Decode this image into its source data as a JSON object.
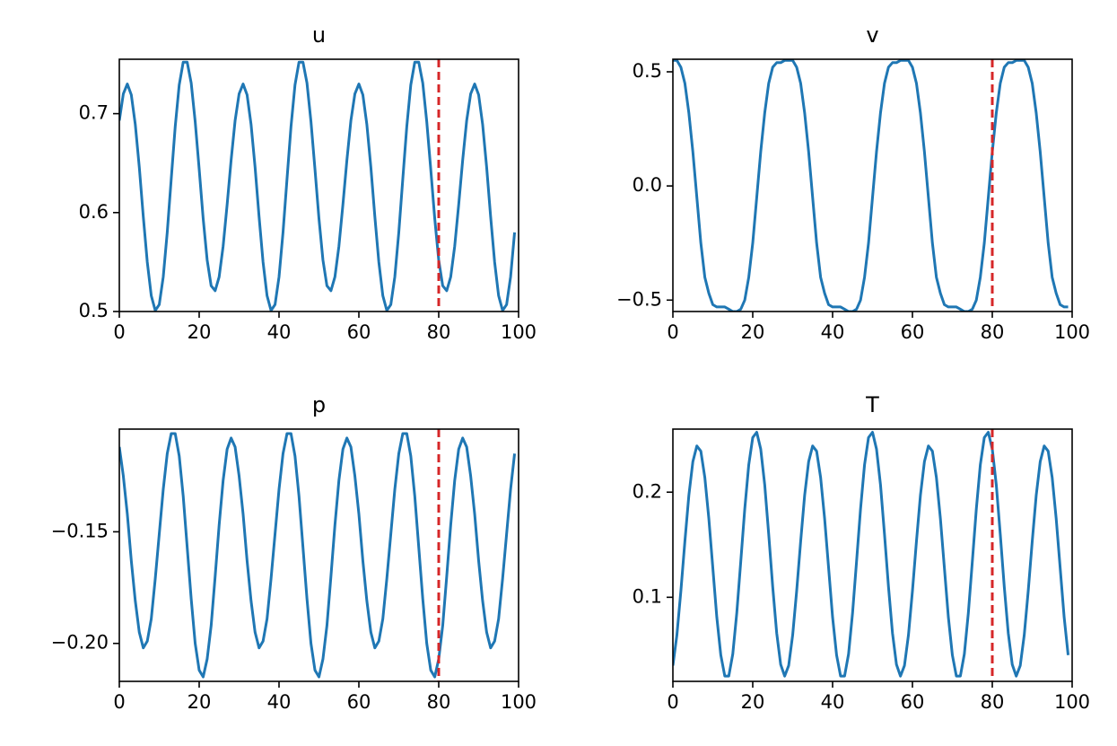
{
  "chart_data": [
    {
      "type": "line",
      "title": "u",
      "color": "#1f77b4",
      "vline": {
        "x": 80,
        "color": "#d62728"
      },
      "x": [
        0,
        1,
        2,
        3,
        4,
        5,
        6,
        7,
        8,
        9,
        10,
        11,
        12,
        13,
        14,
        15,
        16,
        17,
        18,
        19,
        20,
        21,
        22,
        23,
        24,
        25,
        26,
        27,
        28,
        29,
        30,
        31,
        32,
        33,
        34,
        35,
        36,
        37,
        38,
        39,
        40,
        41,
        42,
        43,
        44,
        45,
        46,
        47,
        48,
        49,
        50,
        51,
        52,
        53,
        54,
        55,
        56,
        57,
        58,
        59,
        60,
        61,
        62,
        63,
        64,
        65,
        66,
        67,
        68,
        69,
        70,
        71,
        72,
        73,
        74,
        75,
        76,
        77,
        78,
        79,
        80,
        81,
        82,
        83,
        84,
        85,
        86,
        87,
        88,
        89,
        90,
        91,
        92,
        93,
        94,
        95,
        96,
        97,
        98,
        99
      ],
      "values": [
        0.693,
        0.72,
        0.73,
        0.719,
        0.689,
        0.646,
        0.596,
        0.55,
        0.516,
        0.501,
        0.507,
        0.535,
        0.58,
        0.634,
        0.687,
        0.729,
        0.752,
        0.752,
        0.731,
        0.692,
        0.644,
        0.594,
        0.552,
        0.526,
        0.521,
        0.535,
        0.566,
        0.608,
        0.653,
        0.693,
        0.72,
        0.73,
        0.719,
        0.689,
        0.646,
        0.596,
        0.55,
        0.516,
        0.501,
        0.507,
        0.535,
        0.58,
        0.634,
        0.687,
        0.729,
        0.752,
        0.752,
        0.731,
        0.692,
        0.644,
        0.594,
        0.552,
        0.526,
        0.521,
        0.535,
        0.566,
        0.608,
        0.653,
        0.693,
        0.72,
        0.73,
        0.719,
        0.689,
        0.646,
        0.596,
        0.55,
        0.516,
        0.501,
        0.507,
        0.535,
        0.58,
        0.634,
        0.687,
        0.729,
        0.752,
        0.752,
        0.731,
        0.692,
        0.644,
        0.594,
        0.552,
        0.526,
        0.521,
        0.535,
        0.566,
        0.608,
        0.653,
        0.693,
        0.72,
        0.73,
        0.719,
        0.689,
        0.646,
        0.596,
        0.55,
        0.516,
        0.501,
        0.507,
        0.535,
        0.58
      ],
      "xlim": [
        0,
        100
      ],
      "xticks": [
        0,
        20,
        40,
        60,
        80,
        100
      ],
      "ylim": [
        0.5,
        0.755
      ],
      "yticks": [
        0.5,
        0.6,
        0.7
      ]
    },
    {
      "type": "line",
      "title": "v",
      "color": "#1f77b4",
      "vline": {
        "x": 80,
        "color": "#d62728"
      },
      "x": [
        0,
        1,
        2,
        3,
        4,
        5,
        6,
        7,
        8,
        9,
        10,
        11,
        12,
        13,
        14,
        15,
        16,
        17,
        18,
        19,
        20,
        21,
        22,
        23,
        24,
        25,
        26,
        27,
        28,
        29,
        30,
        31,
        32,
        33,
        34,
        35,
        36,
        37,
        38,
        39,
        40,
        41,
        42,
        43,
        44,
        45,
        46,
        47,
        48,
        49,
        50,
        51,
        52,
        53,
        54,
        55,
        56,
        57,
        58,
        59,
        60,
        61,
        62,
        63,
        64,
        65,
        66,
        67,
        68,
        69,
        70,
        71,
        72,
        73,
        74,
        75,
        76,
        77,
        78,
        79,
        80,
        81,
        82,
        83,
        84,
        85,
        86,
        87,
        88,
        89,
        90,
        91,
        92,
        93,
        94,
        95,
        96,
        97,
        98,
        99
      ],
      "values": [
        0.55,
        0.55,
        0.52,
        0.45,
        0.32,
        0.15,
        -0.05,
        -0.25,
        -0.4,
        -0.47,
        -0.52,
        -0.53,
        -0.53,
        -0.53,
        -0.54,
        -0.55,
        -0.55,
        -0.54,
        -0.5,
        -0.4,
        -0.25,
        -0.05,
        0.15,
        0.32,
        0.45,
        0.52,
        0.54,
        0.54,
        0.55,
        0.55,
        0.55,
        0.52,
        0.45,
        0.32,
        0.15,
        -0.05,
        -0.25,
        -0.4,
        -0.47,
        -0.52,
        -0.53,
        -0.53,
        -0.53,
        -0.54,
        -0.55,
        -0.55,
        -0.54,
        -0.5,
        -0.4,
        -0.25,
        -0.05,
        0.15,
        0.32,
        0.45,
        0.52,
        0.54,
        0.54,
        0.55,
        0.55,
        0.55,
        0.52,
        0.45,
        0.32,
        0.15,
        -0.05,
        -0.25,
        -0.4,
        -0.47,
        -0.52,
        -0.53,
        -0.53,
        -0.53,
        -0.54,
        -0.55,
        -0.55,
        -0.54,
        -0.5,
        -0.4,
        -0.25,
        -0.05,
        0.15,
        0.32,
        0.45,
        0.52,
        0.54,
        0.54,
        0.55,
        0.55,
        0.55,
        0.52,
        0.45,
        0.32,
        0.15,
        -0.05,
        -0.25,
        -0.4,
        -0.47,
        -0.52,
        -0.53,
        -0.53
      ],
      "xlim": [
        0,
        100
      ],
      "xticks": [
        0,
        20,
        40,
        60,
        80,
        100
      ],
      "ylim": [
        -0.55,
        0.555
      ],
      "yticks": [
        {
          "value": -0.5,
          "label": "−0.5"
        },
        {
          "value": 0,
          "label": "0.0"
        },
        0.5
      ]
    },
    {
      "type": "line",
      "title": "p",
      "color": "#1f77b4",
      "vline": {
        "x": 80,
        "color": "#d62728"
      },
      "x": [
        0,
        1,
        2,
        3,
        4,
        5,
        6,
        7,
        8,
        9,
        10,
        11,
        12,
        13,
        14,
        15,
        16,
        17,
        18,
        19,
        20,
        21,
        22,
        23,
        24,
        25,
        26,
        27,
        28,
        29,
        30,
        31,
        32,
        33,
        34,
        35,
        36,
        37,
        38,
        39,
        40,
        41,
        42,
        43,
        44,
        45,
        46,
        47,
        48,
        49,
        50,
        51,
        52,
        53,
        54,
        55,
        56,
        57,
        58,
        59,
        60,
        61,
        62,
        63,
        64,
        65,
        66,
        67,
        68,
        69,
        70,
        71,
        72,
        73,
        74,
        75,
        76,
        77,
        78,
        79,
        80,
        81,
        82,
        83,
        84,
        85,
        86,
        87,
        88,
        89,
        90,
        91,
        92,
        93,
        94,
        95,
        96,
        97,
        98,
        99
      ],
      "values": [
        -0.112,
        -0.125,
        -0.142,
        -0.163,
        -0.181,
        -0.195,
        -0.202,
        -0.199,
        -0.189,
        -0.171,
        -0.151,
        -0.131,
        -0.115,
        -0.106,
        -0.106,
        -0.116,
        -0.134,
        -0.157,
        -0.18,
        -0.2,
        -0.212,
        -0.215,
        -0.207,
        -0.192,
        -0.17,
        -0.147,
        -0.127,
        -0.113,
        -0.108,
        -0.112,
        -0.125,
        -0.142,
        -0.163,
        -0.181,
        -0.195,
        -0.202,
        -0.199,
        -0.189,
        -0.171,
        -0.151,
        -0.131,
        -0.115,
        -0.106,
        -0.106,
        -0.116,
        -0.134,
        -0.157,
        -0.18,
        -0.2,
        -0.212,
        -0.215,
        -0.207,
        -0.192,
        -0.17,
        -0.147,
        -0.127,
        -0.113,
        -0.108,
        -0.112,
        -0.125,
        -0.142,
        -0.163,
        -0.181,
        -0.195,
        -0.202,
        -0.199,
        -0.189,
        -0.171,
        -0.151,
        -0.131,
        -0.115,
        -0.106,
        -0.106,
        -0.116,
        -0.134,
        -0.157,
        -0.18,
        -0.2,
        -0.212,
        -0.215,
        -0.207,
        -0.192,
        -0.17,
        -0.147,
        -0.127,
        -0.113,
        -0.108,
        -0.112,
        -0.125,
        -0.142,
        -0.163,
        -0.181,
        -0.195,
        -0.202,
        -0.199,
        -0.189,
        -0.171,
        -0.151,
        -0.131,
        -0.115
      ],
      "xlim": [
        0,
        100
      ],
      "xticks": [
        0,
        20,
        40,
        60,
        80,
        100
      ],
      "ylim": [
        -0.217,
        -0.104
      ],
      "yticks": [
        {
          "value": -0.2,
          "label": "−0.20"
        },
        {
          "value": -0.15,
          "label": "−0.15"
        }
      ]
    },
    {
      "type": "line",
      "title": "T",
      "color": "#1f77b4",
      "vline": {
        "x": 80,
        "color": "#d62728"
      },
      "x": [
        0,
        1,
        2,
        3,
        4,
        5,
        6,
        7,
        8,
        9,
        10,
        11,
        12,
        13,
        14,
        15,
        16,
        17,
        18,
        19,
        20,
        21,
        22,
        23,
        24,
        25,
        26,
        27,
        28,
        29,
        30,
        31,
        32,
        33,
        34,
        35,
        36,
        37,
        38,
        39,
        40,
        41,
        42,
        43,
        44,
        45,
        46,
        47,
        48,
        49,
        50,
        51,
        52,
        53,
        54,
        55,
        56,
        57,
        58,
        59,
        60,
        61,
        62,
        63,
        64,
        65,
        66,
        67,
        68,
        69,
        70,
        71,
        72,
        73,
        74,
        75,
        76,
        77,
        78,
        79,
        80,
        81,
        82,
        83,
        84,
        85,
        86,
        87,
        88,
        89,
        90,
        91,
        92,
        93,
        94,
        95,
        96,
        97,
        98,
        99
      ],
      "values": [
        0.035,
        0.064,
        0.106,
        0.153,
        0.197,
        0.229,
        0.244,
        0.239,
        0.214,
        0.175,
        0.128,
        0.081,
        0.045,
        0.025,
        0.025,
        0.046,
        0.085,
        0.134,
        0.184,
        0.226,
        0.252,
        0.257,
        0.241,
        0.207,
        0.16,
        0.11,
        0.066,
        0.036,
        0.025,
        0.035,
        0.064,
        0.106,
        0.153,
        0.197,
        0.229,
        0.244,
        0.239,
        0.214,
        0.175,
        0.128,
        0.081,
        0.045,
        0.025,
        0.025,
        0.046,
        0.085,
        0.134,
        0.184,
        0.226,
        0.252,
        0.257,
        0.241,
        0.207,
        0.16,
        0.11,
        0.066,
        0.036,
        0.025,
        0.035,
        0.064,
        0.106,
        0.153,
        0.197,
        0.229,
        0.244,
        0.239,
        0.214,
        0.175,
        0.128,
        0.081,
        0.045,
        0.025,
        0.025,
        0.046,
        0.085,
        0.134,
        0.184,
        0.226,
        0.252,
        0.257,
        0.241,
        0.207,
        0.16,
        0.11,
        0.066,
        0.036,
        0.025,
        0.035,
        0.064,
        0.106,
        0.153,
        0.197,
        0.229,
        0.244,
        0.239,
        0.214,
        0.175,
        0.128,
        0.081,
        0.045
      ],
      "xlim": [
        0,
        100
      ],
      "xticks": [
        0,
        20,
        40,
        60,
        80,
        100
      ],
      "ylim": [
        0.02,
        0.26
      ],
      "yticks": [
        0.1,
        0.2
      ]
    }
  ]
}
